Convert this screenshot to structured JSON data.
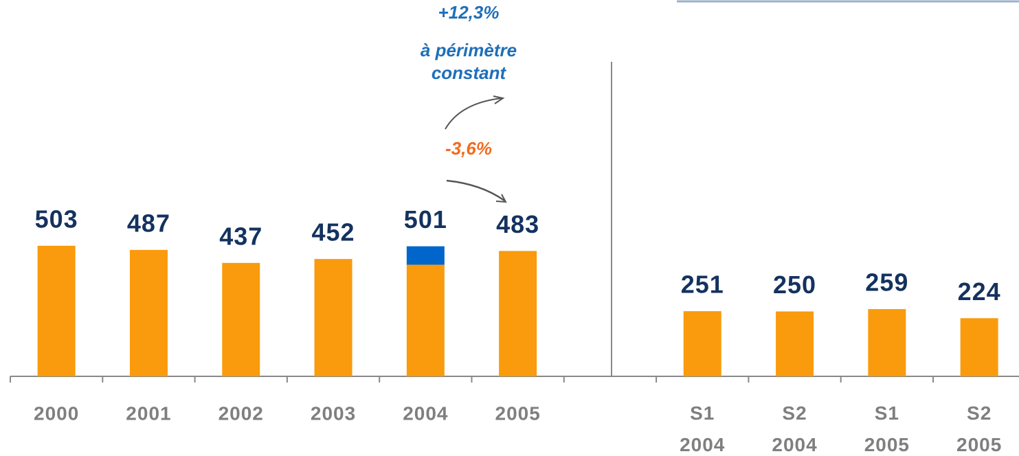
{
  "chart_data": {
    "type": "bar",
    "categories": [
      "2000",
      "2001",
      "2002",
      "2003",
      "2004",
      "2005",
      null,
      "S1 2004",
      "S2 2004",
      "S1 2005",
      "S2 2005"
    ],
    "series": [
      {
        "color": "#f99b0c",
        "values": [
          503,
          487,
          437,
          452,
          430,
          483,
          null,
          251,
          250,
          259,
          224
        ]
      },
      {
        "color": "#0066cc",
        "values": [
          null,
          null,
          null,
          null,
          71,
          null,
          null,
          null,
          null,
          null,
          null
        ]
      }
    ],
    "totals": [
      503,
      487,
      437,
      452,
      501,
      483,
      null,
      251,
      250,
      259,
      224
    ],
    "ylim": [
      0,
      500
    ],
    "annotations": [
      {
        "text": "+12,3%",
        "color": "#1f6fb8"
      },
      {
        "text": "à périmètre",
        "color": "#1f6fb8"
      },
      {
        "text": "constant",
        "color": "#1f6fb8"
      },
      {
        "text": "-3,6%",
        "color": "#f26b1d"
      }
    ]
  }
}
